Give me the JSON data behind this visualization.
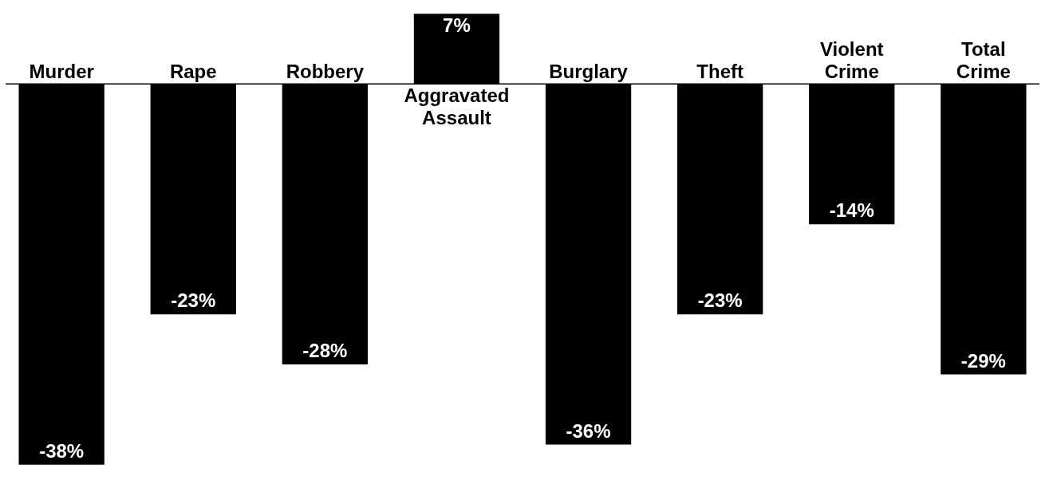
{
  "chart_data": {
    "type": "bar",
    "categories": [
      "Murder",
      "Rape",
      "Robbery",
      "Aggravated Assault",
      "Burglary",
      "Theft",
      "Violent Crime",
      "Total Crime"
    ],
    "values": [
      -38,
      -23,
      -28,
      7,
      -36,
      -23,
      -14,
      -29
    ],
    "value_labels": [
      "-38%",
      "-23%",
      "-28%",
      "7%",
      "-36%",
      "-23%",
      "-14%",
      "-29%"
    ],
    "color": "#000000"
  }
}
